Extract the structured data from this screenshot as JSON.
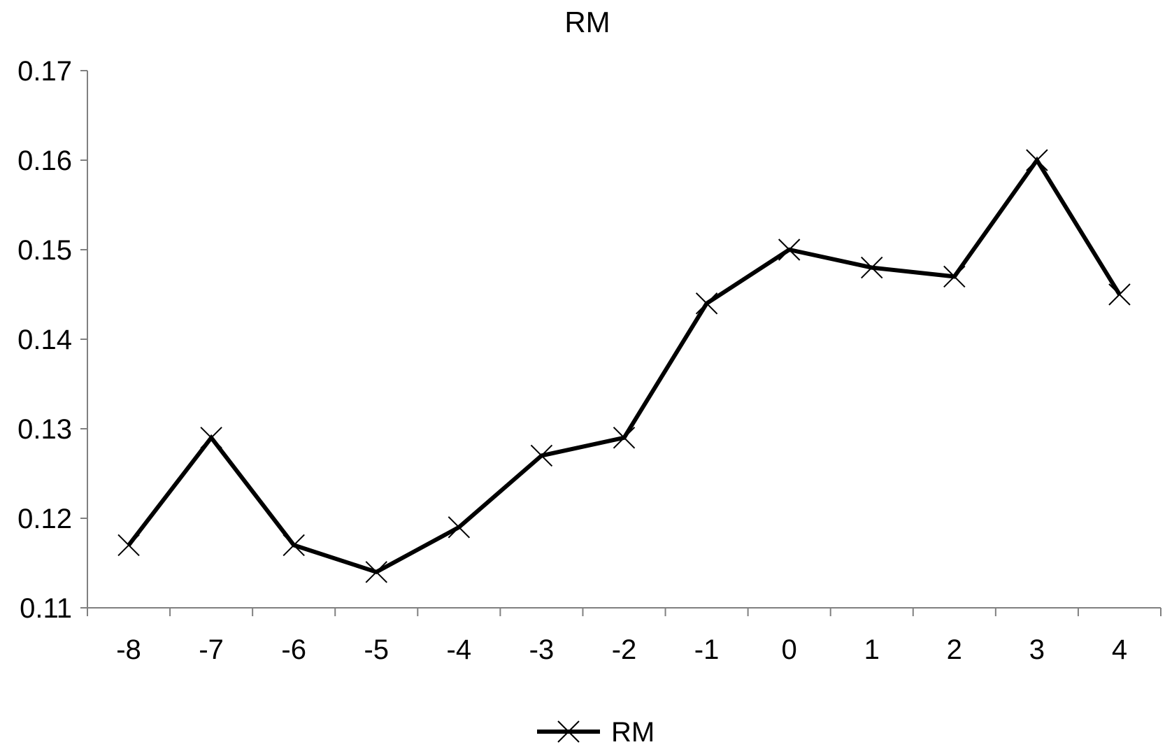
{
  "chart_data": {
    "type": "line",
    "title": "RM",
    "xlabel": "",
    "ylabel": "",
    "categories": [
      "-8",
      "-7",
      "-6",
      "-5",
      "-4",
      "-3",
      "-2",
      "-1",
      "0",
      "1",
      "2",
      "3",
      "4"
    ],
    "series": [
      {
        "name": "RM",
        "values": [
          0.117,
          0.129,
          0.117,
          0.114,
          0.119,
          0.127,
          0.129,
          0.144,
          0.15,
          0.148,
          0.147,
          0.16,
          0.145
        ],
        "color": "#000000",
        "marker": "x"
      }
    ],
    "ylim": [
      0.11,
      0.17
    ],
    "yticks": [
      "0.11",
      "0.12",
      "0.13",
      "0.14",
      "0.15",
      "0.16",
      "0.17"
    ],
    "grid": false,
    "legend": "bottom-center"
  },
  "colors": {
    "axis": "#808080",
    "series": "#000000",
    "background": "#ffffff"
  }
}
